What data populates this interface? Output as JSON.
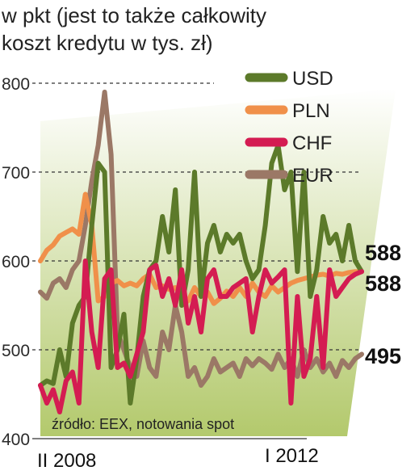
{
  "header": {
    "line1": "w pkt (jest to także całkowity",
    "line2": "koszt kredytu w tys. zł)"
  },
  "chart_data": {
    "type": "line",
    "ylim": [
      400,
      800
    ],
    "yticks": [
      400,
      500,
      600,
      700,
      800
    ],
    "ytick_labels": [
      "400",
      "500",
      "600",
      "700",
      "800"
    ],
    "grid": "dashed horizontal",
    "legend_position": "top-right",
    "x_labels": [
      "II 2008",
      "I 2012"
    ],
    "source": "źródło: EEX, notowania spot",
    "colors": {
      "USD": "#5c7a2a",
      "PLN": "#f0904a",
      "CHF": "#d41c52",
      "EUR": "#9b7866",
      "background_top": "#ffffff",
      "background_bottom": "#b3c96c"
    },
    "series": [
      {
        "name": "USD",
        "end_label": "588",
        "x": [
          0,
          2,
          4,
          6,
          8,
          10,
          12,
          14,
          16,
          18,
          20,
          22,
          24,
          26,
          28,
          30,
          32,
          34,
          36,
          38,
          40,
          42,
          44,
          46,
          48,
          50,
          52,
          54,
          56,
          58,
          60,
          62,
          64,
          66,
          68,
          70,
          72,
          74,
          76,
          78,
          80,
          82,
          84,
          86,
          88,
          90,
          92,
          94,
          96,
          98,
          100
        ],
        "y": [
          460,
          465,
          462,
          500,
          470,
          530,
          550,
          560,
          640,
          710,
          700,
          480,
          500,
          540,
          440,
          490,
          560,
          590,
          600,
          650,
          610,
          680,
          550,
          590,
          700,
          560,
          620,
          640,
          610,
          630,
          620,
          630,
          600,
          580,
          590,
          640,
          710,
          730,
          680,
          700,
          588,
          700,
          560,
          590,
          650,
          620,
          630,
          600,
          640,
          600,
          588
        ]
      },
      {
        "name": "PLN",
        "end_label": "588",
        "x": [
          0,
          2,
          4,
          6,
          8,
          10,
          12,
          14,
          16,
          18,
          20,
          22,
          24,
          26,
          28,
          30,
          32,
          34,
          36,
          38,
          40,
          42,
          44,
          46,
          48,
          50,
          52,
          54,
          56,
          58,
          60,
          62,
          64,
          66,
          68,
          70,
          72,
          74,
          76,
          78,
          80,
          82,
          84,
          86,
          88,
          90,
          92,
          94,
          96,
          98,
          100
        ],
        "y": [
          600,
          612,
          618,
          628,
          632,
          636,
          630,
          675,
          640,
          555,
          560,
          575,
          578,
          572,
          575,
          572,
          580,
          585,
          570,
          572,
          568,
          570,
          560,
          555,
          570,
          560,
          565,
          552,
          558,
          566,
          560,
          570,
          560,
          575,
          565,
          560,
          572,
          565,
          570,
          575,
          578,
          580,
          582,
          584,
          585,
          583,
          586,
          585,
          587,
          588,
          588
        ]
      },
      {
        "name": "CHF",
        "end_label": "",
        "x": [
          0,
          2,
          4,
          6,
          8,
          10,
          12,
          14,
          16,
          18,
          20,
          22,
          24,
          26,
          28,
          30,
          32,
          34,
          36,
          38,
          40,
          42,
          44,
          46,
          48,
          50,
          52,
          54,
          56,
          58,
          60,
          62,
          64,
          66,
          68,
          70,
          72,
          74,
          76,
          78,
          80,
          82,
          84,
          86,
          88,
          90,
          92,
          94,
          96,
          98,
          100
        ],
        "y": [
          460,
          440,
          455,
          430,
          465,
          475,
          440,
          600,
          520,
          480,
          580,
          590,
          480,
          485,
          470,
          495,
          520,
          590,
          595,
          560,
          580,
          550,
          590,
          530,
          560,
          520,
          580,
          590,
          560,
          560,
          570,
          575,
          580,
          520,
          560,
          590,
          575,
          582,
          590,
          440,
          560,
          470,
          490,
          560,
          480,
          590,
          560,
          570,
          580,
          585,
          588
        ]
      },
      {
        "name": "EUR",
        "end_label": "495",
        "x": [
          0,
          2,
          4,
          6,
          8,
          10,
          12,
          14,
          16,
          18,
          20,
          22,
          24,
          26,
          28,
          30,
          32,
          34,
          36,
          38,
          40,
          42,
          44,
          46,
          48,
          50,
          52,
          54,
          56,
          58,
          60,
          62,
          64,
          66,
          68,
          70,
          72,
          74,
          76,
          78,
          80,
          82,
          84,
          86,
          88,
          90,
          92,
          94,
          96,
          98,
          100
        ],
        "y": [
          565,
          558,
          575,
          580,
          570,
          590,
          600,
          640,
          690,
          730,
          790,
          720,
          520,
          500,
          480,
          470,
          510,
          480,
          470,
          520,
          500,
          550,
          520,
          470,
          480,
          460,
          470,
          490,
          475,
          480,
          485,
          470,
          490,
          482,
          490,
          485,
          478,
          495,
          480,
          490,
          470,
          500,
          480,
          490,
          475,
          485,
          470,
          488,
          480,
          490,
          495
        ]
      }
    ]
  }
}
